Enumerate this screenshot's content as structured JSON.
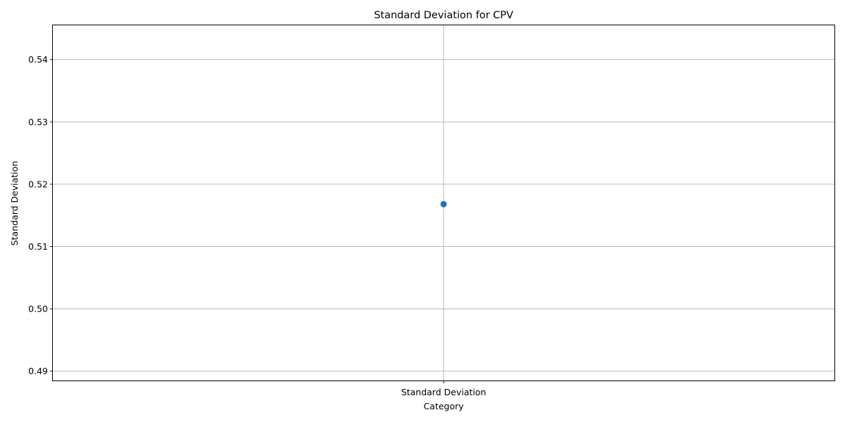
{
  "chart_data": {
    "type": "scatter",
    "title": "Standard Deviation for CPV",
    "xlabel": "Category",
    "ylabel": "Standard Deviation",
    "categories": [
      "Standard Deviation"
    ],
    "series": [
      {
        "values": [
          0.5168
        ],
        "color": "#1f77b4"
      }
    ],
    "ylim": [
      0.4885,
      0.5455
    ],
    "yticks": [
      "0.49",
      "0.50",
      "0.51",
      "0.52",
      "0.53",
      "0.54"
    ],
    "grid": true
  }
}
